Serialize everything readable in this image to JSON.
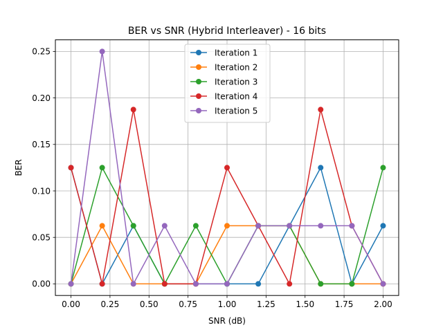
{
  "chart_data": {
    "type": "line",
    "title": "BER vs SNR (Hybrid Interleaver) - 16 bits",
    "xlabel": "SNR (dB)",
    "ylabel": "BER",
    "x": [
      0.0,
      0.2,
      0.4,
      0.6,
      0.8,
      1.0,
      1.2,
      1.4,
      1.6,
      1.8,
      2.0
    ],
    "xlim": [
      -0.1,
      2.1
    ],
    "ylim": [
      -0.0125,
      0.2625
    ],
    "xticks": [
      0.0,
      0.25,
      0.5,
      0.75,
      1.0,
      1.25,
      1.5,
      1.75,
      2.0
    ],
    "xtick_labels": [
      "0.00",
      "0.25",
      "0.50",
      "0.75",
      "1.00",
      "1.25",
      "1.50",
      "1.75",
      "2.00"
    ],
    "yticks": [
      0.0,
      0.05,
      0.1,
      0.15,
      0.2,
      0.25
    ],
    "ytick_labels": [
      "0.00",
      "0.05",
      "0.10",
      "0.15",
      "0.20",
      "0.25"
    ],
    "grid": true,
    "legend_position": "top-center",
    "series": [
      {
        "name": "Iteration 1",
        "color": "#1f77b4",
        "values": [
          0.125,
          0.0,
          0.0625,
          0.0,
          0.0,
          0.0,
          0.0,
          0.0625,
          0.125,
          0.0,
          0.0625
        ]
      },
      {
        "name": "Iteration 2",
        "color": "#ff7f0e",
        "values": [
          0.0,
          0.0625,
          0.0,
          0.0,
          0.0,
          0.0625,
          0.0625,
          0.0625,
          0.0,
          0.0,
          0.0
        ]
      },
      {
        "name": "Iteration 3",
        "color": "#2ca02c",
        "values": [
          0.0,
          0.125,
          0.0625,
          0.0,
          0.0625,
          0.0,
          0.0625,
          0.0625,
          0.0,
          0.0,
          0.125
        ]
      },
      {
        "name": "Iteration 4",
        "color": "#d62728",
        "values": [
          0.125,
          0.0,
          0.1875,
          0.0,
          0.0,
          0.125,
          0.0625,
          0.0,
          0.1875,
          0.0625,
          0.0
        ]
      },
      {
        "name": "Iteration 5",
        "color": "#9467bd",
        "values": [
          0.0,
          0.25,
          0.0,
          0.0625,
          0.0,
          0.0,
          0.0625,
          0.0625,
          0.0625,
          0.0625,
          0.0
        ]
      }
    ]
  }
}
